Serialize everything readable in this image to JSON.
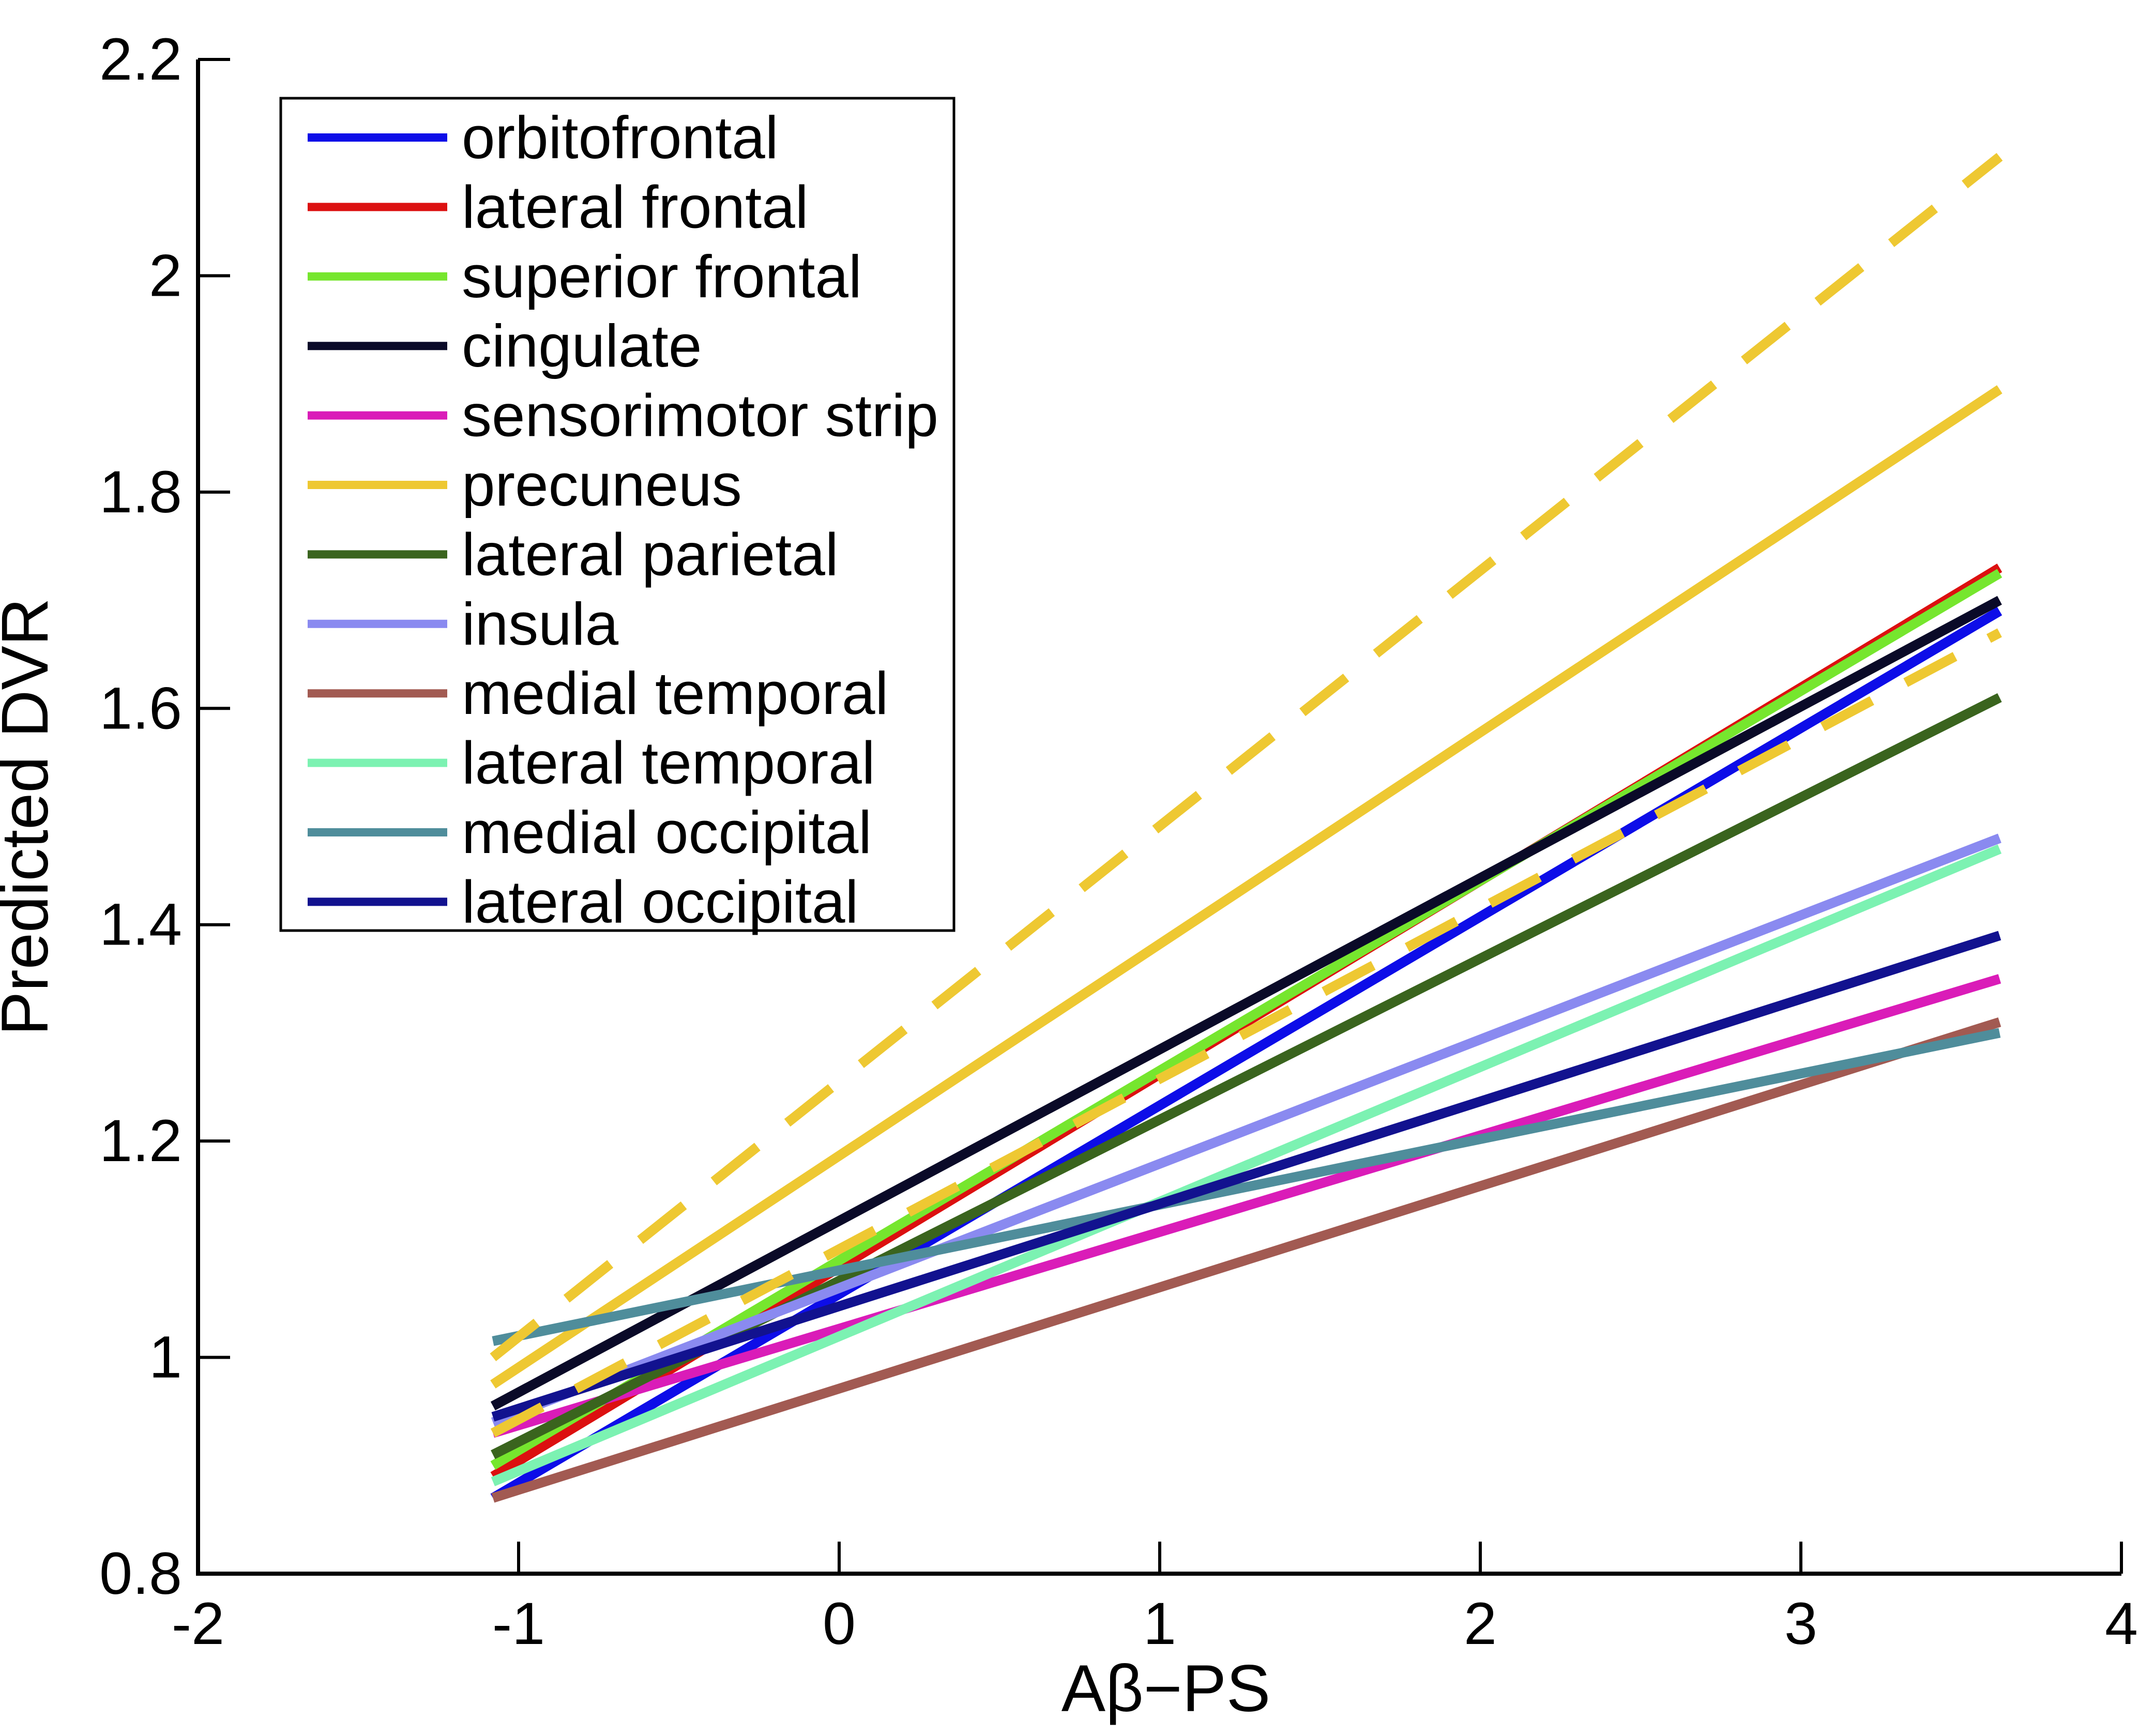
{
  "figure": {
    "background": "#ffffff",
    "axis_color": "#000000"
  },
  "chart_data": {
    "type": "line",
    "title": "",
    "xlabel": "Aβ−PS",
    "ylabel": "Predicted DVR",
    "xlim": [
      -2,
      4
    ],
    "ylim": [
      0.8,
      2.2
    ],
    "grid": false,
    "legend_position": "upper-left-inside",
    "line_x_start": -1.08,
    "line_x_end": 3.62,
    "xticks": [
      {
        "value": -2,
        "label": "-2"
      },
      {
        "value": -1,
        "label": "-1"
      },
      {
        "value": 0,
        "label": "0"
      },
      {
        "value": 1,
        "label": "1"
      },
      {
        "value": 2,
        "label": "2"
      },
      {
        "value": 3,
        "label": "3"
      },
      {
        "value": 4,
        "label": "4"
      }
    ],
    "yticks": [
      {
        "value": 0.8,
        "label": "0.8"
      },
      {
        "value": 1.0,
        "label": "1"
      },
      {
        "value": 1.2,
        "label": "1.2"
      },
      {
        "value": 1.4,
        "label": "1.4"
      },
      {
        "value": 1.6,
        "label": "1.6"
      },
      {
        "value": 1.8,
        "label": "1.8"
      },
      {
        "value": 2.0,
        "label": "2"
      },
      {
        "value": 2.2,
        "label": "2.2"
      }
    ],
    "series": [
      {
        "name": "orbitofrontal",
        "color": "#0D0DE8",
        "style": "solid",
        "in_legend": true,
        "y_start": 0.87,
        "y_end": 1.69
      },
      {
        "name": "lateral frontal",
        "color": "#DC1010",
        "style": "solid",
        "in_legend": true,
        "y_start": 0.89,
        "y_end": 1.73
      },
      {
        "name": "superior frontal",
        "color": "#76E62E",
        "style": "solid",
        "in_legend": true,
        "y_start": 0.9,
        "y_end": 1.725
      },
      {
        "name": "cingulate",
        "color": "#0A0A28",
        "style": "solid",
        "in_legend": true,
        "y_start": 0.955,
        "y_end": 1.7
      },
      {
        "name": "sensorimotor strip",
        "color": "#DA1CB8",
        "style": "solid",
        "in_legend": true,
        "y_start": 0.93,
        "y_end": 1.35
      },
      {
        "name": "precuneus",
        "color": "#EEC832",
        "style": "solid",
        "in_legend": true,
        "y_start": 0.975,
        "y_end": 1.895
      },
      {
        "name": "lateral parietal",
        "color": "#3A641E",
        "style": "solid",
        "in_legend": true,
        "y_start": 0.91,
        "y_end": 1.61
      },
      {
        "name": "insula",
        "color": "#8A8AF0",
        "style": "solid",
        "in_legend": true,
        "y_start": 0.94,
        "y_end": 1.48
      },
      {
        "name": "medial temporal",
        "color": "#A25A52",
        "style": "solid",
        "in_legend": true,
        "y_start": 0.87,
        "y_end": 1.31
      },
      {
        "name": "lateral temporal",
        "color": "#7CF2B2",
        "style": "solid",
        "in_legend": true,
        "y_start": 0.885,
        "y_end": 1.47
      },
      {
        "name": "medial occipital",
        "color": "#4F8D9B",
        "style": "solid",
        "in_legend": true,
        "y_start": 1.015,
        "y_end": 1.3
      },
      {
        "name": "lateral occipital",
        "color": "#12128F",
        "style": "solid",
        "in_legend": true,
        "y_start": 0.945,
        "y_end": 1.39
      },
      {
        "name": "precuneus upper confidence bound",
        "color": "#EEC832",
        "style": "dashed",
        "in_legend": false,
        "y_start": 1.0,
        "y_end": 2.11
      },
      {
        "name": "precuneus lower confidence bound",
        "color": "#EEC832",
        "style": "dashed",
        "in_legend": false,
        "y_start": 0.93,
        "y_end": 1.67
      }
    ]
  }
}
